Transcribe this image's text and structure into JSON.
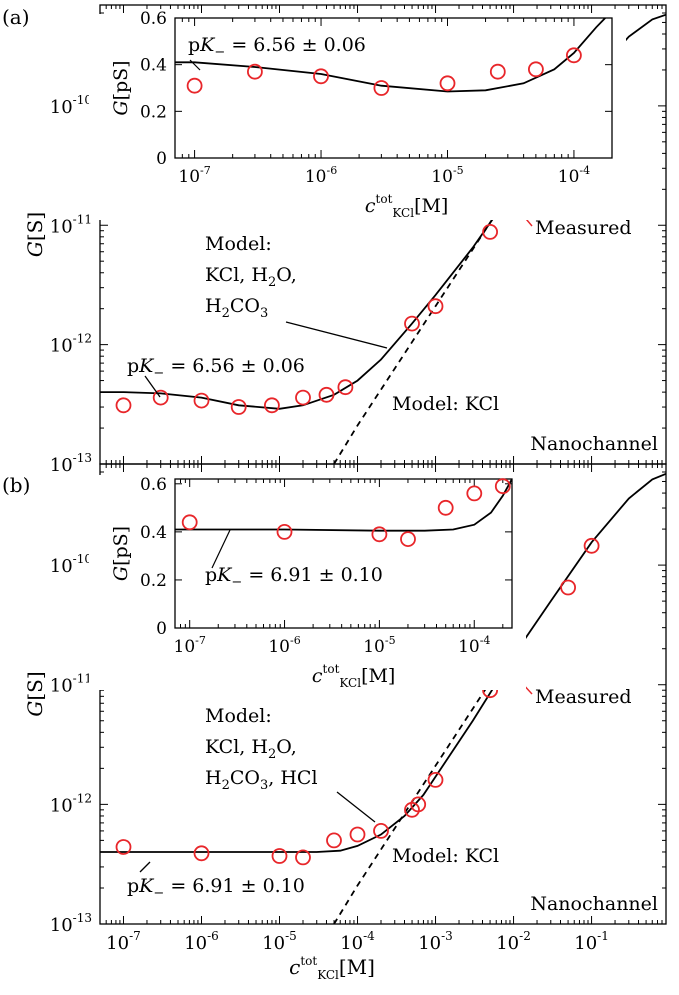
{
  "chart_data": [
    {
      "panel": "(a)",
      "type": "scatter",
      "log_x": true,
      "log_y": true,
      "xlim": [
        5e-08,
        0.9
      ],
      "ylim": [
        1e-13,
        7e-10
      ],
      "x_ticks": [
        "10",
        "10",
        "10",
        "10",
        "10",
        "10",
        "10"
      ],
      "x_tick_exp": [
        "-7",
        "-6",
        "-5",
        "-4",
        "-3",
        "-2",
        "-1"
      ],
      "x_tick_values": [
        1e-07,
        1e-06,
        1e-05,
        0.0001,
        0.001,
        0.01,
        0.1
      ],
      "y_ticks": [
        "10",
        "10",
        "10",
        "10"
      ],
      "y_tick_exp": [
        "-13",
        "-12",
        "-11",
        "-10"
      ],
      "y_tick_values": [
        1e-13,
        1e-12,
        1e-11,
        1e-10
      ],
      "ylabel_var": "G",
      "ylabel_unit": "[S]",
      "series": [
        {
          "role": "measured",
          "marker": "open-circle",
          "color": "#e8262a",
          "x": [
            1e-07,
            3e-07,
            1e-06,
            3e-06,
            8e-06,
            2e-05,
            4e-05,
            7e-05,
            0.0005,
            0.001,
            0.005,
            0.013,
            0.1
          ],
          "y": [
            3.1e-13,
            3.6e-13,
            3.4e-13,
            3e-13,
            3.1e-13,
            3.6e-13,
            3.8e-13,
            4.4e-13,
            1.5e-12,
            2.1e-12,
            8.8e-12,
            2.2e-11,
            2.5e-10
          ]
        },
        {
          "role": "model-full",
          "style": "solid",
          "color": "#000000",
          "x": [
            5e-08,
            1e-07,
            3e-07,
            1e-06,
            3e-06,
            1e-05,
            2e-05,
            5e-05,
            0.0001,
            0.0002,
            0.0005,
            0.001,
            0.003,
            0.01,
            0.03,
            0.1,
            0.3,
            0.6,
            0.9
          ],
          "y": [
            4e-13,
            4e-13,
            3.9e-13,
            3.6e-13,
            3.1e-13,
            2.9e-13,
            3.1e-13,
            3.8e-13,
            5e-13,
            7.5e-13,
            1.5e-12,
            2.6e-12,
            6.5e-12,
            2e-11,
            5.6e-11,
            1.7e-10,
            3.8e-10,
            5.3e-10,
            5.8e-10
          ]
        },
        {
          "role": "model-kcl",
          "style": "dashed",
          "color": "#000000",
          "x": [
            5e-05,
            0.0001,
            0.0003,
            0.001,
            0.003,
            0.01
          ],
          "y": [
            1e-13,
            2.1e-13,
            6.3e-13,
            2.1e-12,
            6.3e-12,
            2.1e-11
          ]
        }
      ],
      "annotations": {
        "model_full": [
          "Model:",
          "KCl, H",
          "2",
          "O,",
          "H",
          "2",
          "CO",
          "3",
          ""
        ],
        "pk_label": [
          "p",
          "K",
          "−",
          " = 6.56 ± 0.06"
        ],
        "model_kcl": "Model: KCl",
        "measured": "Measured",
        "nanochannel": "Nanochannel"
      },
      "inset": {
        "type": "scatter",
        "log_x": true,
        "xlim": [
          7e-08,
          0.0002
        ],
        "ylim": [
          0,
          0.6
        ],
        "x_ticks": [
          "10",
          "10",
          "10",
          "10"
        ],
        "x_tick_exp": [
          "-7",
          "-6",
          "-5",
          "-4"
        ],
        "x_tick_values": [
          1e-07,
          1e-06,
          1e-05,
          0.0001
        ],
        "y_ticks": [
          "0",
          "0.2",
          "0.4",
          "0.6"
        ],
        "y_tick_values": [
          0,
          0.2,
          0.4,
          0.6
        ],
        "ylabel_var": "G",
        "ylabel_unit": "[pS]",
        "xlabel": {
          "var": "c",
          "sup": "tot",
          "sub": "KCl",
          "unit": "[M]"
        },
        "pk_label": [
          "p",
          "K",
          "−",
          " = 6.56 ± 0.06"
        ],
        "series": [
          {
            "role": "measured",
            "x": [
              1e-07,
              3e-07,
              1e-06,
              3e-06,
              1e-05,
              2.5e-05,
              5e-05,
              0.0001
            ],
            "y": [
              0.31,
              0.37,
              0.35,
              0.3,
              0.32,
              0.37,
              0.38,
              0.44
            ]
          },
          {
            "role": "model",
            "x": [
              7e-08,
              1e-07,
              3e-07,
              1e-06,
              3e-06,
              1e-05,
              2e-05,
              4e-05,
              7e-05,
              0.0001,
              0.00015,
              0.0002
            ],
            "y": [
              0.41,
              0.41,
              0.39,
              0.36,
              0.31,
              0.285,
              0.29,
              0.32,
              0.38,
              0.45,
              0.56,
              0.63
            ]
          }
        ]
      }
    },
    {
      "panel": "(b)",
      "type": "scatter",
      "log_x": true,
      "log_y": true,
      "xlim": [
        5e-08,
        0.9
      ],
      "ylim": [
        1e-13,
        7e-10
      ],
      "x_ticks": [
        "10",
        "10",
        "10",
        "10",
        "10",
        "10",
        "10"
      ],
      "x_tick_exp": [
        "-7",
        "-6",
        "-5",
        "-4",
        "-3",
        "-2",
        "-1"
      ],
      "x_tick_values": [
        1e-07,
        1e-06,
        1e-05,
        0.0001,
        0.001,
        0.01,
        0.1
      ],
      "y_ticks": [
        "10",
        "10",
        "10",
        "10"
      ],
      "y_tick_exp": [
        "-13",
        "-12",
        "-11",
        "-10"
      ],
      "y_tick_values": [
        1e-13,
        1e-12,
        1e-11,
        1e-10
      ],
      "ylabel_var": "G",
      "ylabel_unit": "[S]",
      "xlabel": {
        "var": "c",
        "sup": "tot",
        "sub": "KCl",
        "unit": "[M]"
      },
      "series": [
        {
          "role": "measured",
          "marker": "open-circle",
          "color": "#e8262a",
          "x": [
            1e-07,
            1e-06,
            1e-05,
            2e-05,
            5e-05,
            0.0001,
            0.0002,
            0.0005,
            0.0006,
            0.001,
            0.005,
            0.01,
            0.05,
            0.1
          ],
          "y": [
            4.4e-13,
            3.9e-13,
            3.7e-13,
            3.6e-13,
            5e-13,
            5.6e-13,
            6e-13,
            9e-13,
            1e-12,
            1.6e-12,
            9e-12,
            1.8e-11,
            6.5e-11,
            1.45e-10
          ]
        },
        {
          "role": "model-full",
          "style": "solid",
          "color": "#000000",
          "x": [
            5e-08,
            1e-07,
            1e-06,
            1e-05,
            3e-05,
            6e-05,
            0.0001,
            0.0002,
            0.0004,
            0.0007,
            0.001,
            0.003,
            0.01,
            0.03,
            0.1,
            0.3,
            0.6,
            0.9
          ],
          "y": [
            4e-13,
            4e-13,
            4e-13,
            4e-13,
            4e-13,
            4.1e-13,
            4.5e-13,
            5.6e-13,
            8e-13,
            1.2e-12,
            1.7e-12,
            5e-12,
            1.75e-11,
            5e-11,
            1.55e-10,
            3.6e-10,
            5.2e-10,
            5.8e-10
          ]
        },
        {
          "role": "model-kcl",
          "style": "dashed",
          "color": "#000000",
          "x": [
            5e-05,
            0.0001,
            0.0003,
            0.001,
            0.003,
            0.01
          ],
          "y": [
            1e-13,
            2.1e-13,
            6.3e-13,
            2.1e-12,
            6.3e-12,
            2.1e-11
          ]
        }
      ],
      "annotations": {
        "model_full": [
          "Model:",
          "KCl, H",
          "2",
          "O,",
          "H",
          "2",
          "CO",
          "3",
          ", HCl"
        ],
        "pk_label": [
          "p",
          "K",
          "−",
          " = 6.91 ± 0.10"
        ],
        "model_kcl": "Model: KCl",
        "measured": "Measured",
        "nanochannel": "Nanochannel"
      },
      "inset": {
        "type": "scatter",
        "log_x": true,
        "xlim": [
          7e-08,
          0.00025
        ],
        "ylim": [
          0,
          0.62
        ],
        "x_ticks": [
          "10",
          "10",
          "10",
          "10"
        ],
        "x_tick_exp": [
          "-7",
          "-6",
          "-5",
          "-4"
        ],
        "x_tick_values": [
          1e-07,
          1e-06,
          1e-05,
          0.0001
        ],
        "y_ticks": [
          "0",
          "0.2",
          "0.4",
          "0.6"
        ],
        "y_tick_values": [
          0,
          0.2,
          0.4,
          0.6
        ],
        "ylabel_var": "G",
        "ylabel_unit": "[pS]",
        "xlabel": {
          "var": "c",
          "sup": "tot",
          "sub": "KCl",
          "unit": "[M]"
        },
        "pk_label": [
          "p",
          "K",
          "−",
          " = 6.91 ± 0.10"
        ],
        "series": [
          {
            "role": "measured",
            "x": [
              1e-07,
              1e-06,
              1e-05,
              2e-05,
              5e-05,
              0.0001,
              0.0002
            ],
            "y": [
              0.44,
              0.4,
              0.39,
              0.37,
              0.5,
              0.56,
              0.59
            ]
          },
          {
            "role": "model",
            "x": [
              7e-08,
              1e-07,
              1e-06,
              1e-05,
              3e-05,
              6e-05,
              0.0001,
              0.00015,
              0.0002,
              0.00025
            ],
            "y": [
              0.41,
              0.41,
              0.41,
              0.405,
              0.405,
              0.41,
              0.43,
              0.48,
              0.55,
              0.62
            ]
          }
        ]
      }
    }
  ]
}
